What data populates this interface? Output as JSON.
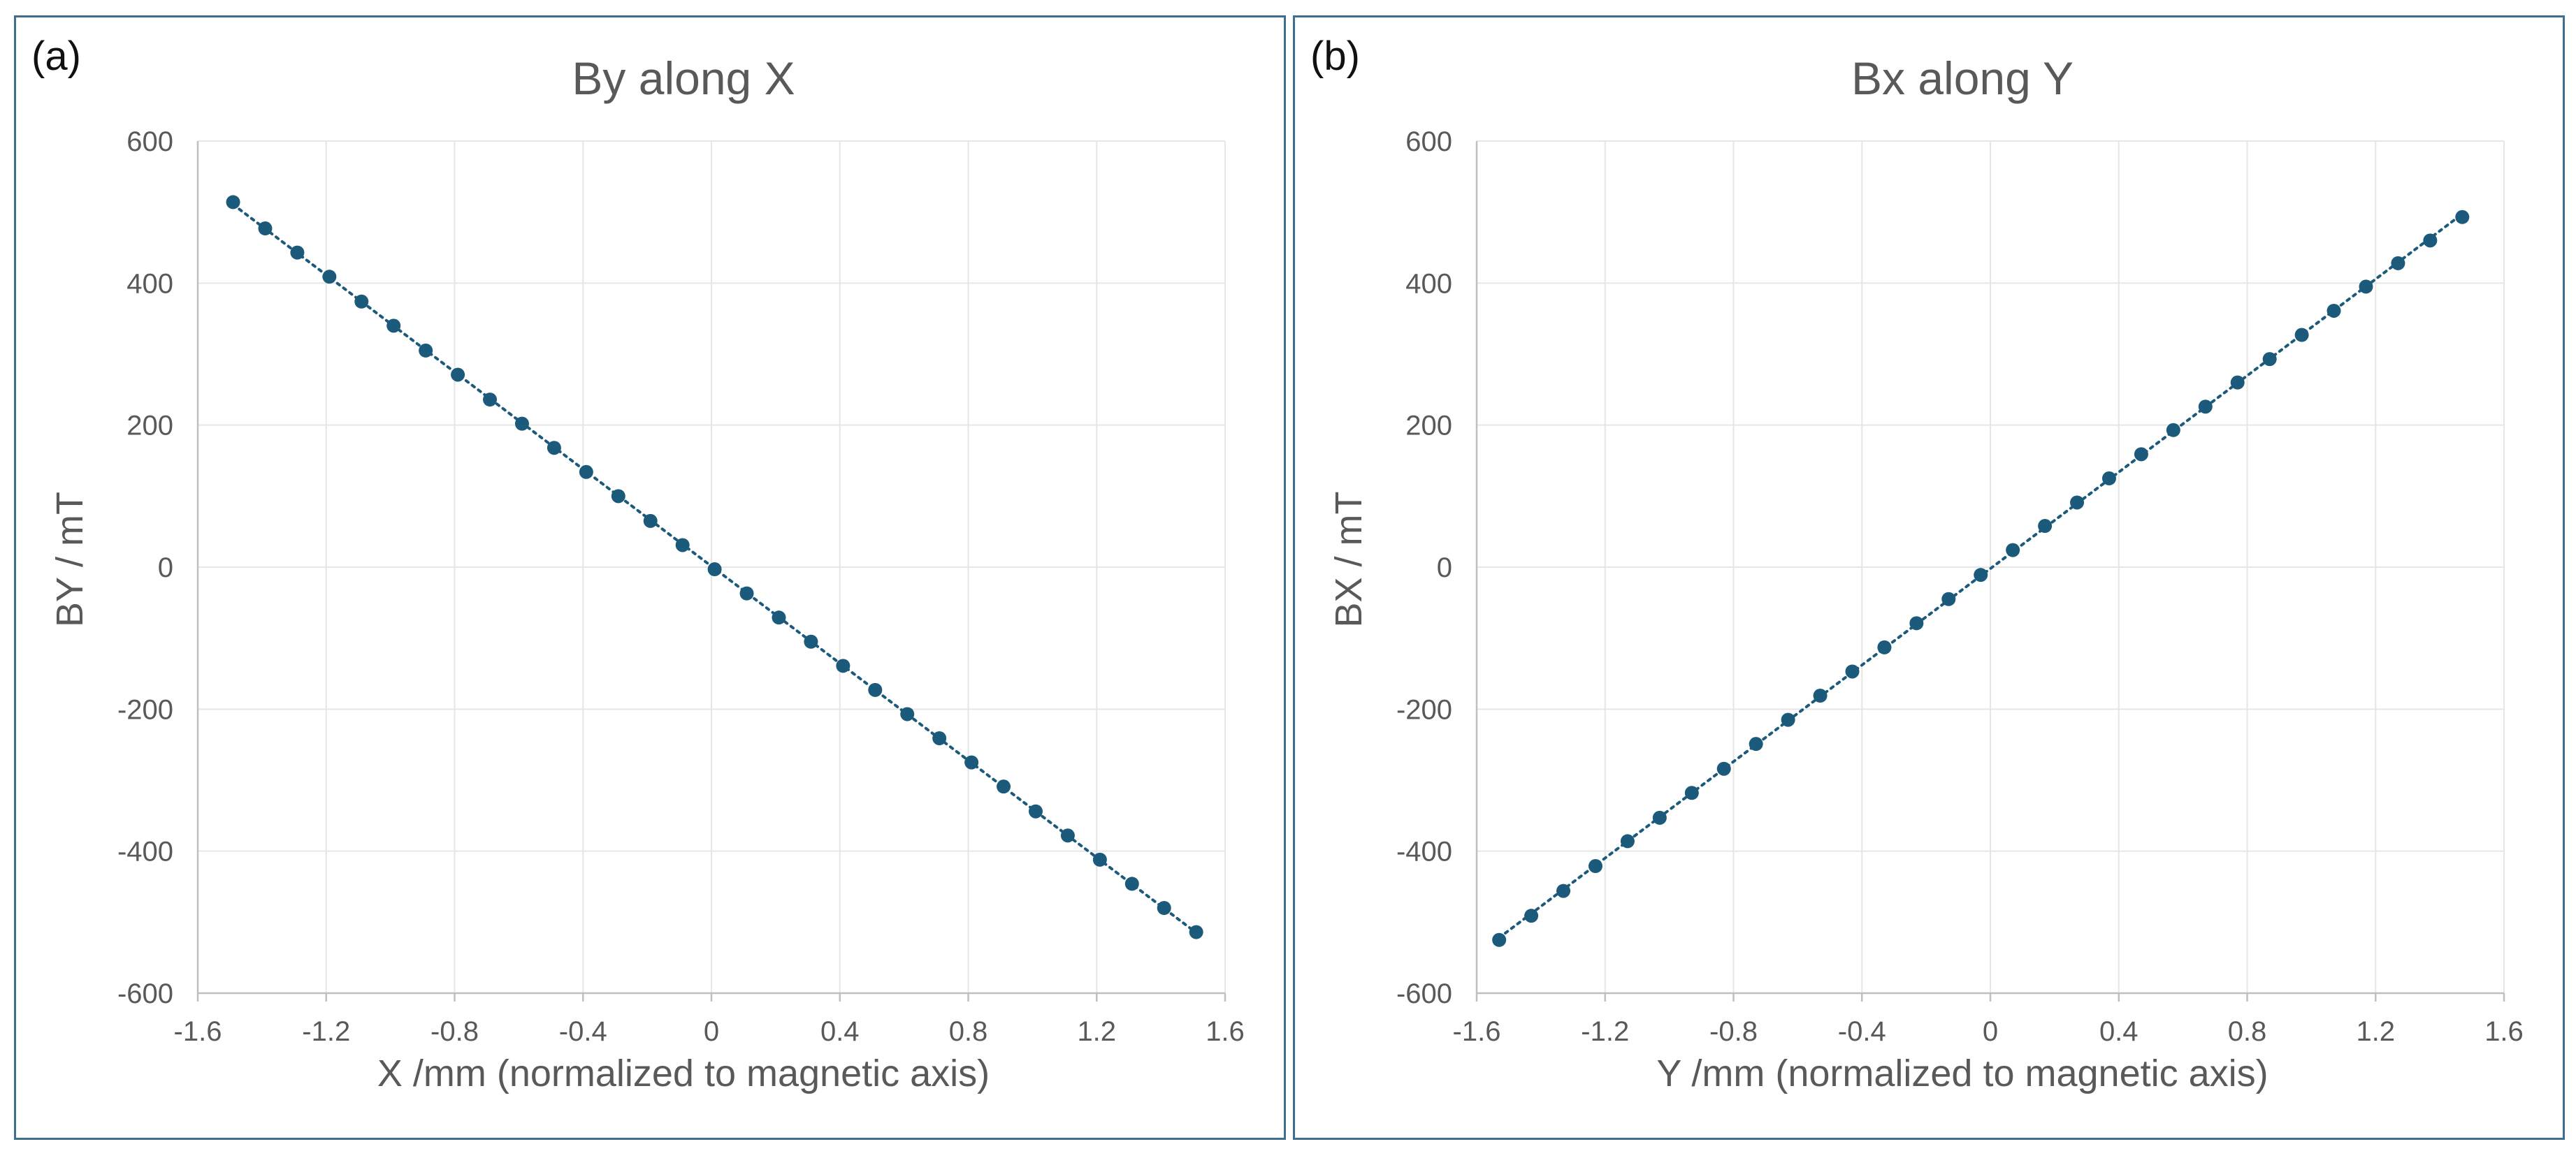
{
  "chart_data": [
    {
      "type": "scatter",
      "panel_tag": "(a)",
      "title": "By along X",
      "xlabel": "X /mm (normalized to magnetic axis)",
      "ylabel": "BY / mT",
      "xlim": [
        -1.6,
        1.6
      ],
      "ylim": [
        -600,
        600
      ],
      "xticks": [
        -1.6,
        -1.2,
        -0.8,
        -0.4,
        0,
        0.4,
        0.8,
        1.2,
        1.6
      ],
      "yticks": [
        -600,
        -400,
        -200,
        0,
        200,
        400,
        600
      ],
      "grid": true,
      "trendline": "linear, dotted",
      "series": [
        {
          "name": "By",
          "color": "#1b5a7a",
          "x": [
            -1.49,
            -1.39,
            -1.29,
            -1.19,
            -1.09,
            -0.99,
            -0.89,
            -0.79,
            -0.69,
            -0.59,
            -0.49,
            -0.39,
            -0.29,
            -0.19,
            -0.09,
            0.01,
            0.11,
            0.21,
            0.31,
            0.41,
            0.51,
            0.61,
            0.71,
            0.81,
            0.91,
            1.01,
            1.11,
            1.21,
            1.31,
            1.41,
            1.51
          ],
          "y": [
            514,
            477,
            443,
            409,
            374,
            340,
            305,
            271,
            236,
            202,
            168,
            134,
            100,
            65,
            31,
            -3,
            -37,
            -71,
            -105,
            -139,
            -173,
            -207,
            -241,
            -275,
            -309,
            -344,
            -378,
            -412,
            -446,
            -480,
            -514
          ]
        }
      ]
    },
    {
      "type": "scatter",
      "panel_tag": "(b)",
      "title": "Bx along Y",
      "xlabel": "Y /mm (normalized to magnetic axis)",
      "ylabel": "BX / mT",
      "xlim": [
        -1.6,
        1.6
      ],
      "ylim": [
        -600,
        600
      ],
      "xticks": [
        -1.6,
        -1.2,
        -0.8,
        -0.4,
        0,
        0.4,
        0.8,
        1.2,
        1.6
      ],
      "yticks": [
        -600,
        -400,
        -200,
        0,
        200,
        400,
        600
      ],
      "grid": true,
      "trendline": "linear, dotted",
      "series": [
        {
          "name": "Bx",
          "color": "#1b5a7a",
          "x": [
            -1.53,
            -1.43,
            -1.33,
            -1.23,
            -1.13,
            -1.03,
            -0.93,
            -0.83,
            -0.73,
            -0.63,
            -0.53,
            -0.43,
            -0.33,
            -0.23,
            -0.13,
            -0.03,
            0.07,
            0.17,
            0.27,
            0.37,
            0.47,
            0.57,
            0.67,
            0.77,
            0.87,
            0.97,
            1.07,
            1.17,
            1.27,
            1.37,
            1.47
          ],
          "y": [
            -525,
            -491,
            -456,
            -421,
            -386,
            -353,
            -318,
            -284,
            -249,
            -215,
            -181,
            -147,
            -113,
            -79,
            -45,
            -11,
            24,
            58,
            91,
            125,
            159,
            193,
            226,
            260,
            293,
            327,
            361,
            395,
            428,
            460,
            493
          ]
        }
      ]
    }
  ]
}
